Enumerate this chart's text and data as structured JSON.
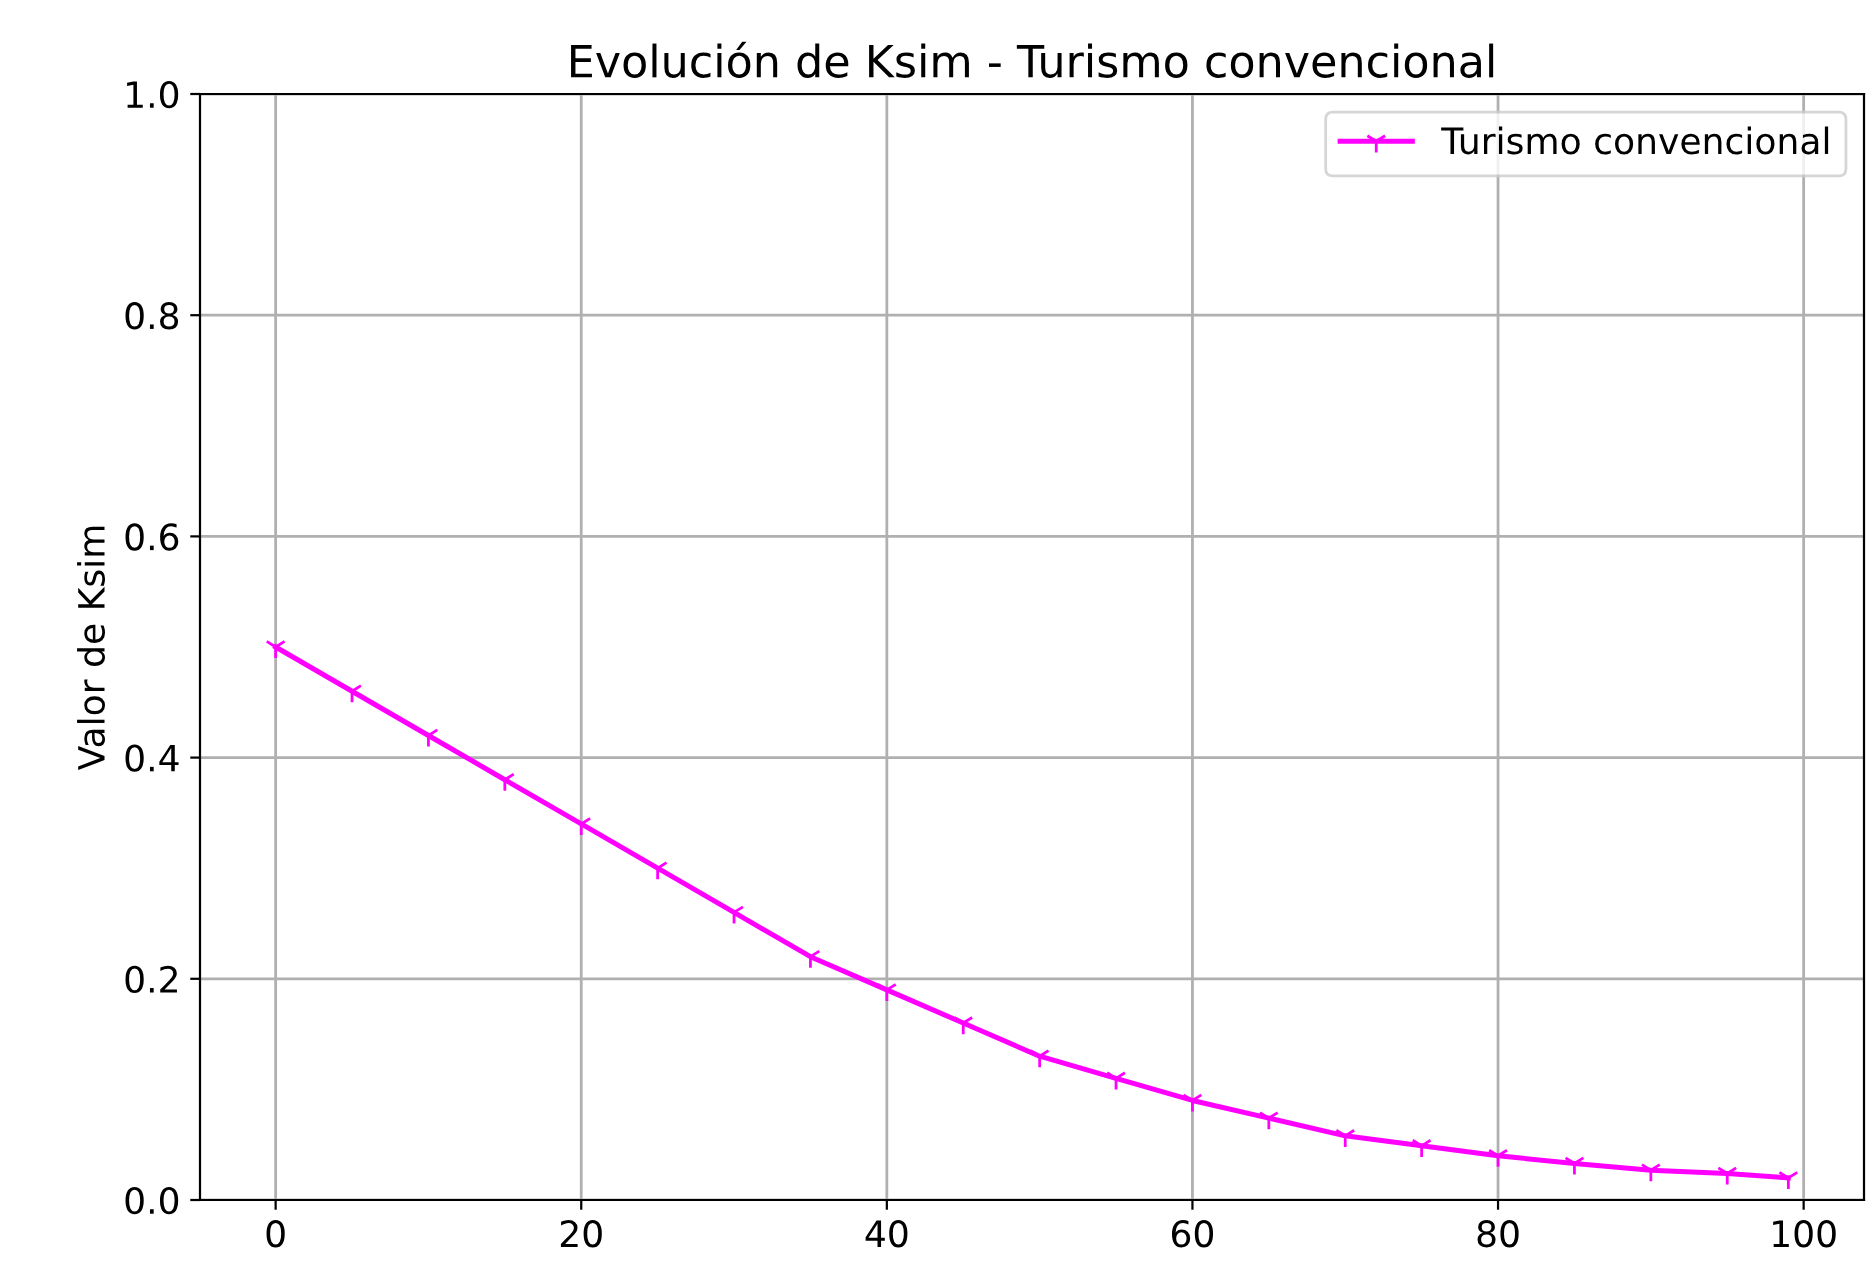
{
  "chart_data": {
    "type": "line",
    "title": "Evolución de Ksim - Turismo convencional",
    "ylabel": "Valor de Ksim",
    "x": [
      0,
      5,
      10,
      15,
      20,
      25,
      30,
      35,
      40,
      45,
      50,
      55,
      60,
      65,
      70,
      75,
      80,
      85,
      90,
      95,
      99
    ],
    "series": [
      {
        "name": "Turismo convencional",
        "color": "#ff00ff",
        "values": [
          0.5,
          0.46,
          0.42,
          0.38,
          0.34,
          0.3,
          0.26,
          0.22,
          0.19,
          0.16,
          0.13,
          0.11,
          0.09,
          0.074,
          0.058,
          0.049,
          0.04,
          0.033,
          0.027,
          0.024,
          0.02
        ]
      }
    ],
    "xlim": [
      -4.95,
      103.95
    ],
    "ylim": [
      0,
      1
    ],
    "xticks": [
      0,
      20,
      40,
      60,
      80,
      100
    ],
    "yticks": [
      {
        "value": 0,
        "label": "0.0"
      },
      0.2,
      0.4,
      0.6,
      0.8,
      {
        "value": 1,
        "label": "1.0"
      }
    ],
    "grid": true,
    "legend": "top right",
    "marker": "cross",
    "line_style": "solid"
  }
}
